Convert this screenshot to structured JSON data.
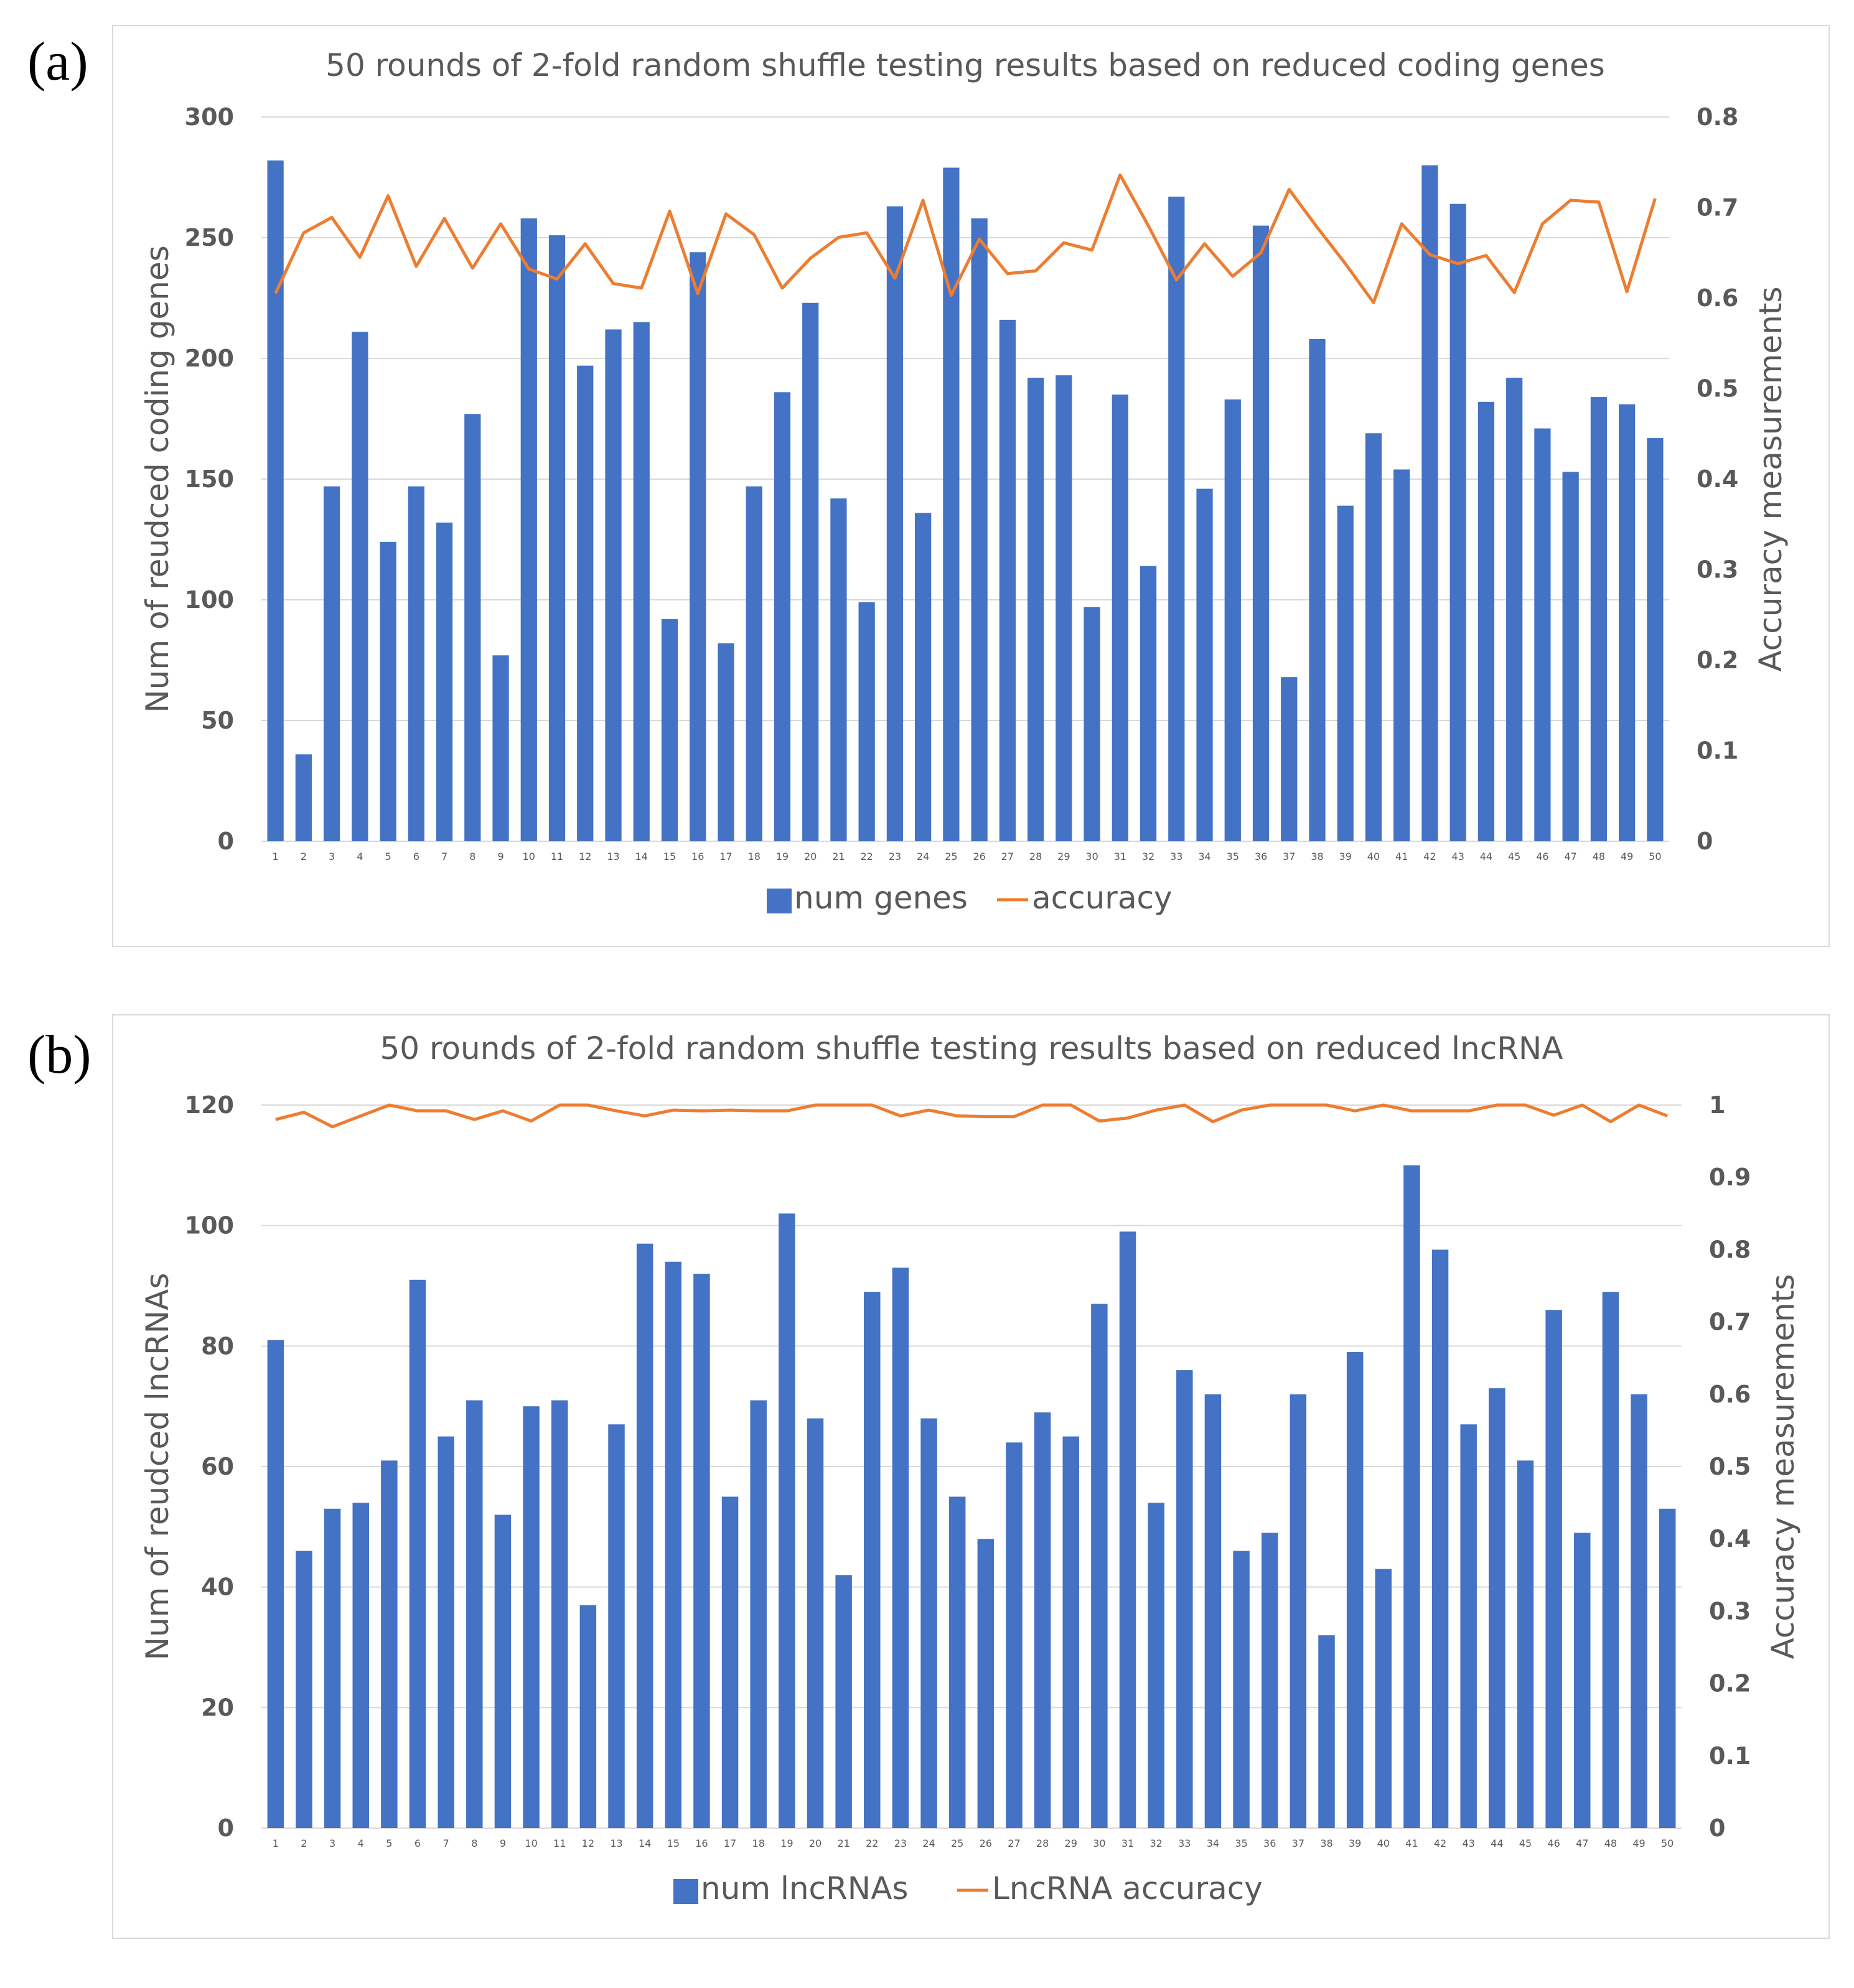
{
  "chart_data": [
    {
      "panel_label": "(a)",
      "type": "bar+line",
      "title": "50 rounds of 2-fold random shuffle testing results based on reduced coding genes",
      "categories": [
        "1",
        "2",
        "3",
        "4",
        "5",
        "6",
        "7",
        "8",
        "9",
        "10",
        "11",
        "12",
        "13",
        "14",
        "15",
        "16",
        "17",
        "18",
        "19",
        "20",
        "21",
        "22",
        "23",
        "24",
        "25",
        "26",
        "27",
        "28",
        "29",
        "30",
        "31",
        "32",
        "33",
        "34",
        "35",
        "36",
        "37",
        "38",
        "39",
        "40",
        "41",
        "42",
        "43",
        "44",
        "45",
        "46",
        "47",
        "48",
        "49",
        "50"
      ],
      "series": [
        {
          "name": "num genes",
          "type": "bar",
          "axis": "left",
          "color": "#4472C4",
          "values": [
            282,
            36,
            147,
            211,
            124,
            147,
            132,
            177,
            77,
            258,
            251,
            197,
            212,
            215,
            92,
            244,
            82,
            147,
            186,
            223,
            142,
            99,
            263,
            136,
            279,
            258,
            216,
            192,
            193,
            97,
            185,
            114,
            267,
            146,
            183,
            255,
            68,
            208,
            139,
            169,
            154,
            280,
            264,
            182,
            192,
            171,
            153,
            184,
            181,
            167
          ]
        },
        {
          "name": "accuracy",
          "type": "line",
          "axis": "right",
          "color": "#ED7D31",
          "values": [
            0.605,
            0.672,
            0.689,
            0.645,
            0.713,
            0.635,
            0.688,
            0.633,
            0.682,
            0.632,
            0.621,
            0.66,
            0.616,
            0.611,
            0.696,
            0.605,
            0.693,
            0.67,
            0.611,
            0.644,
            0.667,
            0.672,
            0.622,
            0.708,
            0.603,
            0.665,
            0.627,
            0.63,
            0.661,
            0.653,
            0.736,
            0.68,
            0.62,
            0.66,
            0.624,
            0.65,
            0.72,
            0.678,
            0.638,
            0.595,
            0.682,
            0.648,
            0.638,
            0.647,
            0.606,
            0.682,
            0.708,
            0.706,
            0.607,
            0.71
          ]
        }
      ],
      "ylabel": "Num of reudced coding genes",
      "y2label": "Accuracy measurements",
      "ylim": [
        0,
        300
      ],
      "y2lim": [
        0,
        0.8
      ],
      "yticks": [
        "0",
        "50",
        "100",
        "150",
        "200",
        "250",
        "300"
      ],
      "y2ticks": [
        "0",
        "0.1",
        "0.2",
        "0.3",
        "0.4",
        "0.5",
        "0.6",
        "0.7",
        "0.8"
      ],
      "legend": [
        "num genes",
        "accuracy"
      ],
      "legend_position": "bottom",
      "grid": true
    },
    {
      "panel_label": "(b)",
      "type": "bar+line",
      "title": "50 rounds of 2-fold random shuffle testing results based on reduced lncRNA",
      "categories": [
        "1",
        "2",
        "3",
        "4",
        "5",
        "6",
        "7",
        "8",
        "9",
        "10",
        "11",
        "12",
        "13",
        "14",
        "15",
        "16",
        "17",
        "18",
        "19",
        "20",
        "21",
        "22",
        "23",
        "24",
        "25",
        "26",
        "27",
        "28",
        "29",
        "30",
        "31",
        "32",
        "33",
        "34",
        "35",
        "36",
        "37",
        "38",
        "39",
        "40",
        "41",
        "42",
        "43",
        "44",
        "45",
        "46",
        "47",
        "48",
        "49",
        "50"
      ],
      "series": [
        {
          "name": "num lncRNAs",
          "type": "bar",
          "axis": "left",
          "color": "#4472C4",
          "values": [
            81,
            46,
            53,
            54,
            61,
            91,
            65,
            71,
            52,
            70,
            71,
            37,
            67,
            97,
            94,
            92,
            55,
            71,
            102,
            68,
            42,
            89,
            93,
            68,
            55,
            48,
            64,
            69,
            65,
            87,
            99,
            54,
            76,
            72,
            46,
            49,
            72,
            32,
            79,
            43,
            110,
            96,
            67,
            73,
            61,
            86,
            49,
            89,
            72,
            53
          ]
        },
        {
          "name": "LncRNA accuracy",
          "type": "line",
          "axis": "right",
          "color": "#ED7D31",
          "values": [
            0.98,
            0.99,
            0.97,
            0.985,
            1.0,
            0.992,
            0.992,
            0.98,
            0.992,
            0.978,
            1.0,
            1.0,
            0.992,
            0.985,
            0.993,
            0.992,
            0.993,
            0.992,
            0.992,
            1.0,
            1.0,
            1.0,
            0.985,
            0.993,
            0.985,
            0.984,
            0.984,
            1.0,
            1.0,
            0.978,
            0.982,
            0.993,
            1.0,
            0.977,
            0.993,
            1.0,
            1.0,
            1.0,
            0.992,
            1.0,
            0.992,
            0.992,
            0.992,
            1.0,
            1.0,
            0.986,
            1.0,
            0.977,
            1.0,
            0.985
          ]
        }
      ],
      "ylabel": "Num of reudced lncRNAs",
      "y2label": "Accuracy measurements",
      "ylim": [
        0,
        120
      ],
      "y2lim": [
        0,
        1
      ],
      "yticks": [
        "0",
        "20",
        "40",
        "60",
        "80",
        "100",
        "120"
      ],
      "y2ticks": [
        "0",
        "0.1",
        "0.2",
        "0.3",
        "0.4",
        "0.5",
        "0.6",
        "0.7",
        "0.8",
        "0.9",
        "1"
      ],
      "legend": [
        "num lncRNAs",
        "LncRNA accuracy"
      ],
      "legend_position": "bottom",
      "grid": true
    }
  ]
}
